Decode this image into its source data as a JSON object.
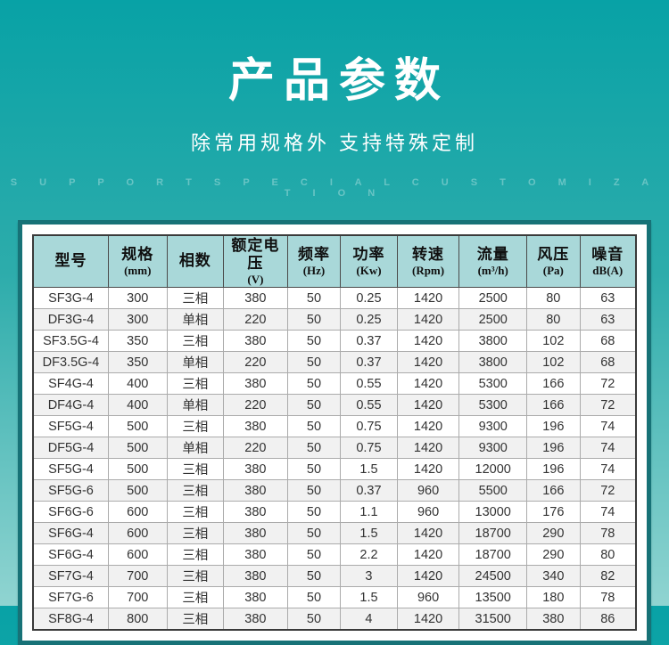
{
  "hero": {
    "title": "产品参数",
    "subtitle": "除常用规格外 支持特殊定制",
    "subtitle_en": "S U P P O R T   S P E C I A L   C U S T O M I Z A T I O N"
  },
  "colors": {
    "bg_top": "#08a2a6",
    "bg_bottom": "#90d4d1",
    "panel_border": "#177277",
    "header_bg": "#a9d8d9",
    "alt_row_bg": "#f1f1f1",
    "text": "#333333"
  },
  "chart_data": {
    "type": "table",
    "title": "产品参数",
    "columns": [
      {
        "label": "型号",
        "unit": ""
      },
      {
        "label": "规格",
        "unit": "(mm)"
      },
      {
        "label": "相数",
        "unit": ""
      },
      {
        "label": "额定电压",
        "unit": "(V)"
      },
      {
        "label": "频率",
        "unit": "(Hz)"
      },
      {
        "label": "功率",
        "unit": "(Kw)"
      },
      {
        "label": "转速",
        "unit": "(Rpm)"
      },
      {
        "label": "流量",
        "unit": "(m³/h)"
      },
      {
        "label": "风压",
        "unit": "(Pa)"
      },
      {
        "label": "噪音",
        "unit": "dB(A)"
      }
    ],
    "rows": [
      [
        "SF3G-4",
        "300",
        "三相",
        "380",
        "50",
        "0.25",
        "1420",
        "2500",
        "80",
        "63"
      ],
      [
        "DF3G-4",
        "300",
        "单相",
        "220",
        "50",
        "0.25",
        "1420",
        "2500",
        "80",
        "63"
      ],
      [
        "SF3.5G-4",
        "350",
        "三相",
        "380",
        "50",
        "0.37",
        "1420",
        "3800",
        "102",
        "68"
      ],
      [
        "DF3.5G-4",
        "350",
        "单相",
        "220",
        "50",
        "0.37",
        "1420",
        "3800",
        "102",
        "68"
      ],
      [
        "SF4G-4",
        "400",
        "三相",
        "380",
        "50",
        "0.55",
        "1420",
        "5300",
        "166",
        "72"
      ],
      [
        "DF4G-4",
        "400",
        "单相",
        "220",
        "50",
        "0.55",
        "1420",
        "5300",
        "166",
        "72"
      ],
      [
        "SF5G-4",
        "500",
        "三相",
        "380",
        "50",
        "0.75",
        "1420",
        "9300",
        "196",
        "74"
      ],
      [
        "DF5G-4",
        "500",
        "单相",
        "220",
        "50",
        "0.75",
        "1420",
        "9300",
        "196",
        "74"
      ],
      [
        "SF5G-4",
        "500",
        "三相",
        "380",
        "50",
        "1.5",
        "1420",
        "12000",
        "196",
        "74"
      ],
      [
        "SF5G-6",
        "500",
        "三相",
        "380",
        "50",
        "0.37",
        "960",
        "5500",
        "166",
        "72"
      ],
      [
        "SF6G-6",
        "600",
        "三相",
        "380",
        "50",
        "1.1",
        "960",
        "13000",
        "176",
        "74"
      ],
      [
        "SF6G-4",
        "600",
        "三相",
        "380",
        "50",
        "1.5",
        "1420",
        "18700",
        "290",
        "78"
      ],
      [
        "SF6G-4",
        "600",
        "三相",
        "380",
        "50",
        "2.2",
        "1420",
        "18700",
        "290",
        "80"
      ],
      [
        "SF7G-4",
        "700",
        "三相",
        "380",
        "50",
        "3",
        "1420",
        "24500",
        "340",
        "82"
      ],
      [
        "SF7G-6",
        "700",
        "三相",
        "380",
        "50",
        "1.5",
        "960",
        "13500",
        "180",
        "78"
      ],
      [
        "SF8G-4",
        "800",
        "三相",
        "380",
        "50",
        "4",
        "1420",
        "31500",
        "380",
        "86"
      ]
    ]
  }
}
